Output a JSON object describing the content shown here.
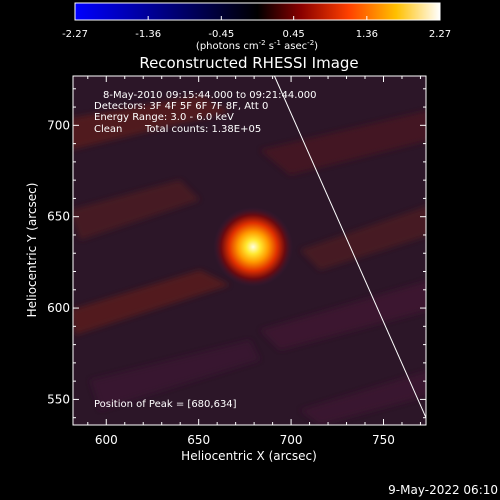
{
  "colorbar": {
    "ticks": [
      "-2.27",
      "-1.36",
      "-0.45",
      "0.45",
      "1.36",
      "2.27"
    ],
    "vmin": -2.27,
    "vmax": 2.27,
    "unit_main": "(photons cm",
    "unit_exp1": "-2",
    "unit_mid": " s",
    "unit_exp2": "-1",
    "unit_end": " asec",
    "unit_exp3": "-2",
    "unit_close": ")"
  },
  "title": "Reconstructed RHESSI Image",
  "info": {
    "time_range": "8-May-2010 09:15:44.000 to 09:21:44.000",
    "detectors": "Detectors: 3F 4F 5F 6F 7F 8F, Att 0",
    "energy": "Energy Range: 3.0 - 6.0 keV",
    "method": "Clean",
    "counts": "Total counts: 1.38E+05",
    "peak": "Position of Peak = [680,634]"
  },
  "footer": {
    "timestamp": "9-May-2022 06:10"
  },
  "colors": {
    "background": "#000000",
    "limb": "#ffffff",
    "text": "#ffffff"
  },
  "chart_data": {
    "type": "heatmap",
    "title": "Reconstructed RHESSI Image",
    "xlabel": "Heliocentric X (arcsec)",
    "ylabel": "Heliocentric Y (arcsec)",
    "xlim": [
      582,
      773
    ],
    "ylim": [
      536,
      727
    ],
    "xticks": [
      "600",
      "650",
      "700",
      "750"
    ],
    "yticks": [
      "550",
      "600",
      "650",
      "700"
    ],
    "xtick_values": [
      600,
      650,
      700,
      750
    ],
    "ytick_values": [
      550,
      600,
      650,
      700
    ],
    "colormap": "red-temperature",
    "peak": {
      "x": 680,
      "y": 634
    },
    "limb": [
      [
        691,
        727
      ],
      [
        773,
        540
      ]
    ],
    "grid": false,
    "legend": "none"
  }
}
